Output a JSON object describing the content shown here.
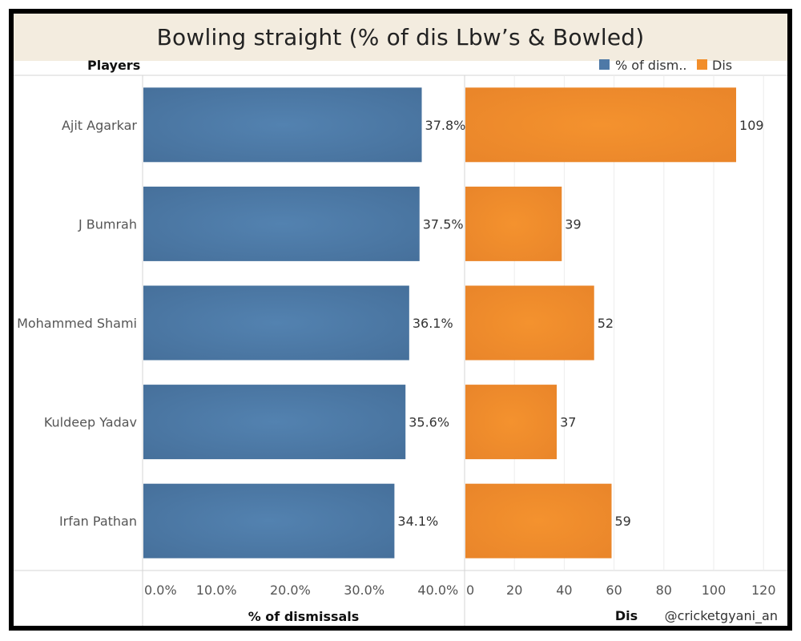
{
  "title": "Bowling straight (% of dis Lbw’s & Bowled)",
  "row_header": "Players",
  "legend": [
    {
      "label": "% of dism..",
      "color": "#4e79a7"
    },
    {
      "label": "Dis",
      "color": "#f28e2b"
    }
  ],
  "watermark": "@cricketgyani_an",
  "chart_data": [
    {
      "type": "bar",
      "orientation": "horizontal",
      "categories": [
        "Ajit Agarkar",
        "J Bumrah",
        "Mohammed Shami",
        "Kuldeep Yadav",
        "Irfan Pathan"
      ],
      "values": [
        37.8,
        37.5,
        36.1,
        35.6,
        34.1
      ],
      "value_labels": [
        "37.8%",
        "37.5%",
        "36.1%",
        "35.6%",
        "34.1%"
      ],
      "xlabel": "% of dismissals",
      "xlim": [
        0,
        43.6
      ],
      "ticks": [
        0,
        10,
        20,
        30,
        40
      ],
      "tick_labels": [
        "0.0%",
        "10.0%",
        "20.0%",
        "30.0%",
        "40.0%"
      ],
      "color": "#4e79a7",
      "grid": false
    },
    {
      "type": "bar",
      "orientation": "horizontal",
      "categories": [
        "Ajit Agarkar",
        "J Bumrah",
        "Mohammed Shami",
        "Kuldeep Yadav",
        "Irfan Pathan"
      ],
      "values": [
        109,
        39,
        52,
        37,
        59
      ],
      "value_labels": [
        "109",
        "39",
        "52",
        "37",
        "59"
      ],
      "xlabel": "Dis",
      "xlim": [
        0,
        127
      ],
      "ticks": [
        0,
        20,
        40,
        60,
        80,
        100,
        120
      ],
      "tick_labels": [
        "0",
        "20",
        "40",
        "60",
        "80",
        "100",
        "120"
      ],
      "color": "#f28e2b",
      "grid": true
    }
  ]
}
